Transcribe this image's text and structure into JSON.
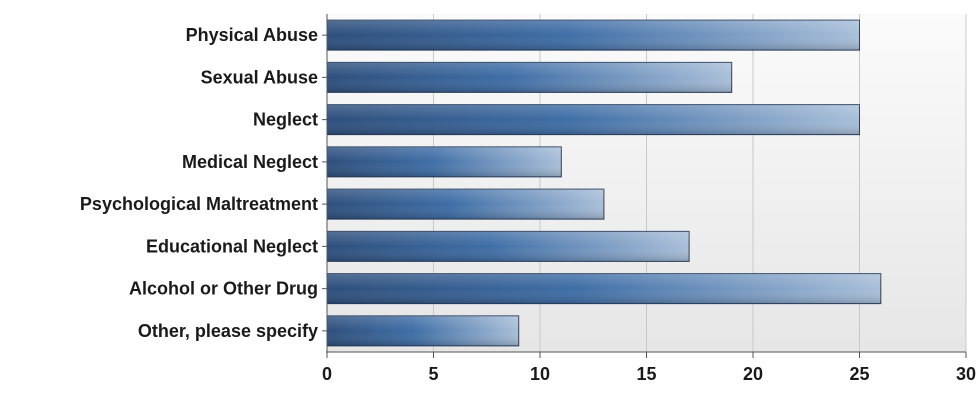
{
  "chart_data": {
    "type": "bar",
    "orientation": "horizontal",
    "categories": [
      "Physical Abuse",
      "Sexual Abuse",
      "Neglect",
      "Medical Neglect",
      "Psychological Maltreatment",
      "Educational Neglect",
      "Alcohol or Other Drug",
      "Other, please specify"
    ],
    "values": [
      25,
      19,
      25,
      11,
      13,
      17,
      26,
      9
    ],
    "xlim": [
      0,
      30
    ],
    "xticks": [
      0,
      5,
      10,
      15,
      20,
      25,
      30
    ],
    "title": "",
    "xlabel": "",
    "ylabel": "",
    "grid": "vertical",
    "legend": "none",
    "colors": {
      "bar_dark": "#2e4f7c",
      "bar_mid": "#3f6ea6",
      "bar_light": "#a9bfd9",
      "plot_bg_top": "#fbfbfb",
      "plot_bg_bottom": "#e6e6e6",
      "grid": "#c8c8c8",
      "axis": "#555555"
    }
  }
}
